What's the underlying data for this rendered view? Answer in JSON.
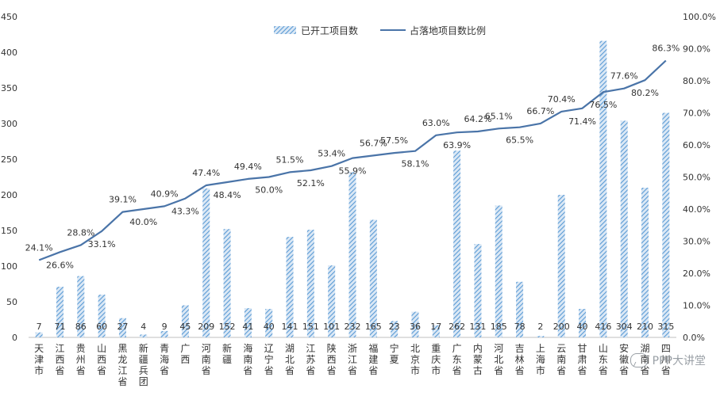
{
  "chart_data": {
    "type": "bar+line",
    "categories": [
      "天津市",
      "江西省",
      "贵州省",
      "山西省",
      "黑龙江省",
      "新疆兵团",
      "青海省",
      "广西",
      "河南省",
      "新疆",
      "海南省",
      "辽宁省",
      "湖北省",
      "江苏省",
      "陕西省",
      "浙江省",
      "福建省",
      "宁夏",
      "北京市",
      "重庆市",
      "广东省",
      "内蒙古",
      "河北省",
      "吉林省",
      "上海市",
      "云南省",
      "甘肃省",
      "山东省",
      "安徽省",
      "湖南省",
      "四川省"
    ],
    "series": [
      {
        "name": "已开工项目数",
        "axis": "left",
        "values": [
          7,
          71,
          86,
          60,
          27,
          4,
          9,
          45,
          209,
          152,
          41,
          40,
          141,
          151,
          101,
          232,
          165,
          23,
          36,
          17,
          262,
          131,
          185,
          78,
          2,
          200,
          40,
          416,
          304,
          210,
          315
        ]
      },
      {
        "name": "占落地项目数比例",
        "axis": "right",
        "values": [
          24.1,
          26.6,
          28.8,
          33.1,
          39.1,
          40.0,
          40.9,
          43.3,
          47.4,
          48.4,
          49.4,
          50.0,
          51.5,
          52.1,
          53.4,
          55.9,
          56.7,
          57.5,
          58.1,
          63.0,
          63.9,
          64.2,
          65.1,
          65.5,
          66.7,
          70.4,
          71.4,
          76.5,
          77.6,
          80.2,
          86.3
        ]
      }
    ],
    "bar_labels": [
      "7",
      "71",
      "86",
      "60",
      "27",
      "4",
      "9",
      "45",
      "209",
      "152",
      "41",
      "40",
      "141",
      "151",
      "101",
      "232",
      "165",
      "23",
      "36",
      "17",
      "262",
      "131",
      "185",
      "78",
      "2",
      "200",
      "40",
      "416",
      "304",
      "210",
      "315"
    ],
    "line_labels": [
      "24.1%",
      "26.6%",
      "28.8%",
      "33.1%",
      "39.1%",
      "40.0%",
      "40.9%",
      "43.3%",
      "47.4%",
      "48.4%",
      "49.4%",
      "50.0%",
      "51.5%",
      "52.1%",
      "53.4%",
      "55.9%",
      "56.7%",
      "57.5%",
      "58.1%",
      "63.0%",
      "63.9%",
      "64.2%",
      "65.1%",
      "65.5%",
      "66.7%",
      "70.4%",
      "71.4%",
      "76.5%",
      "77.6%",
      "80.2%",
      "86.3%"
    ],
    "line_label_side": [
      "above",
      "below",
      "above",
      "below",
      "above",
      "below",
      "above",
      "below",
      "above",
      "below",
      "above",
      "below",
      "above",
      "below",
      "above",
      "below",
      "above",
      "above",
      "below",
      "above",
      "below",
      "above",
      "above",
      "below",
      "above",
      "above",
      "below",
      "below",
      "above",
      "below",
      "above"
    ],
    "y_left": {
      "ylim": [
        0,
        450
      ],
      "ticks": [
        "0",
        "50",
        "100",
        "150",
        "200",
        "250",
        "300",
        "350",
        "400",
        "450"
      ]
    },
    "y_right": {
      "ylim": [
        0,
        100
      ],
      "ticks": [
        "0.0%",
        "10.0%",
        "20.0%",
        "30.0%",
        "40.0%",
        "50.0%",
        "60.0%",
        "70.0%",
        "80.0%",
        "90.0%",
        "100.0%"
      ]
    },
    "legend": {
      "position": "top-center",
      "bar_label": "已开工项目数",
      "line_label": "占落地项目数比例"
    },
    "grid": false,
    "colors": {
      "bar": "#5b9bd5",
      "line": "#4a74a8",
      "text": "#333333",
      "axis": "#bfbfbf"
    }
  },
  "watermark": "PPP大讲堂"
}
